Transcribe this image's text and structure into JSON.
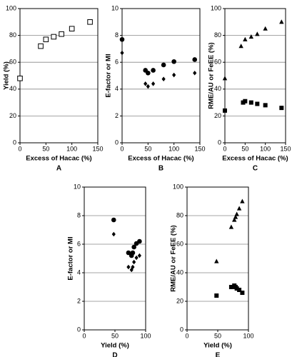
{
  "chart_data": [
    {
      "type": "scatter",
      "label": "A",
      "xlabel": "Excess of Hacac (%)",
      "ylabel": "Yield (%)",
      "xlim": [
        0,
        150
      ],
      "xticks": [
        0,
        50,
        100,
        150
      ],
      "ylim": [
        0,
        100
      ],
      "yticks": [
        0,
        20,
        40,
        60,
        80,
        100
      ],
      "grid": true,
      "series": [
        {
          "marker": "open-square",
          "color": "#000000",
          "x": [
            0,
            40,
            50,
            65,
            80,
            100,
            135
          ],
          "y": [
            48,
            72,
            77,
            79,
            81,
            85,
            90
          ]
        }
      ]
    },
    {
      "type": "scatter",
      "label": "B",
      "xlabel": "Excess of Hacac (%)",
      "ylabel": "E-factor or MI",
      "xlim": [
        0,
        150
      ],
      "xticks": [
        0,
        50,
        100,
        150
      ],
      "ylim": [
        0,
        10
      ],
      "yticks": [
        0,
        2,
        4,
        6,
        8,
        10
      ],
      "grid": true,
      "series": [
        {
          "marker": "circle",
          "color": "#000000",
          "x": [
            0,
            45,
            50,
            60,
            80,
            100,
            140
          ],
          "y": [
            7.7,
            5.4,
            5.2,
            5.4,
            5.8,
            6.05,
            6.2
          ]
        },
        {
          "marker": "diamond",
          "color": "#000000",
          "x": [
            0,
            45,
            50,
            60,
            80,
            100,
            140
          ],
          "y": [
            6.7,
            4.4,
            4.2,
            4.4,
            4.75,
            5.05,
            5.2
          ]
        }
      ]
    },
    {
      "type": "scatter",
      "label": "C",
      "xlabel": "Excess of Hacac (%)",
      "ylabel": "RME/AU or FeEE (%)",
      "xlim": [
        0,
        150
      ],
      "xticks": [
        0,
        50,
        100,
        150
      ],
      "ylim": [
        0,
        100
      ],
      "yticks": [
        0,
        20,
        40,
        60,
        80,
        100
      ],
      "grid": true,
      "series": [
        {
          "marker": "triangle",
          "color": "#000000",
          "x": [
            0,
            40,
            50,
            65,
            80,
            100,
            140
          ],
          "y": [
            48,
            72,
            77,
            79,
            81,
            85,
            90
          ]
        },
        {
          "marker": "square",
          "color": "#000000",
          "x": [
            0,
            45,
            50,
            65,
            80,
            100,
            140
          ],
          "y": [
            24,
            30,
            31,
            30,
            29,
            28,
            26
          ]
        }
      ]
    },
    {
      "type": "scatter",
      "label": "D",
      "xlabel": "Yield (%)",
      "ylabel": "E-factor or MI",
      "xlim": [
        0,
        100
      ],
      "xticks": [
        0,
        50,
        100
      ],
      "ylim": [
        0,
        10
      ],
      "yticks": [
        0,
        2,
        4,
        6,
        8,
        10
      ],
      "grid": true,
      "series": [
        {
          "marker": "circle",
          "color": "#000000",
          "x": [
            48,
            72,
            77,
            79,
            81,
            85,
            90
          ],
          "y": [
            7.7,
            5.4,
            5.2,
            5.4,
            5.8,
            6.05,
            6.2
          ]
        },
        {
          "marker": "diamond",
          "color": "#000000",
          "x": [
            48,
            72,
            77,
            79,
            81,
            85,
            90
          ],
          "y": [
            6.7,
            4.4,
            4.2,
            4.4,
            4.75,
            5.05,
            5.2
          ]
        }
      ]
    },
    {
      "type": "scatter",
      "label": "E",
      "xlabel": "Yield (%)",
      "ylabel": "RME/AU or FeEE (%)",
      "xlim": [
        0,
        100
      ],
      "xticks": [
        0,
        50,
        100
      ],
      "ylim": [
        0,
        100
      ],
      "yticks": [
        0,
        20,
        40,
        60,
        80,
        100
      ],
      "grid": true,
      "series": [
        {
          "marker": "triangle",
          "color": "#000000",
          "x": [
            48,
            72,
            77,
            79,
            81,
            85,
            90
          ],
          "y": [
            48,
            72,
            77,
            79,
            81,
            85,
            90
          ]
        },
        {
          "marker": "square",
          "color": "#000000",
          "x": [
            48,
            72,
            77,
            79,
            81,
            85,
            90
          ],
          "y": [
            24,
            30,
            31,
            30,
            29,
            28,
            26
          ]
        }
      ]
    }
  ]
}
